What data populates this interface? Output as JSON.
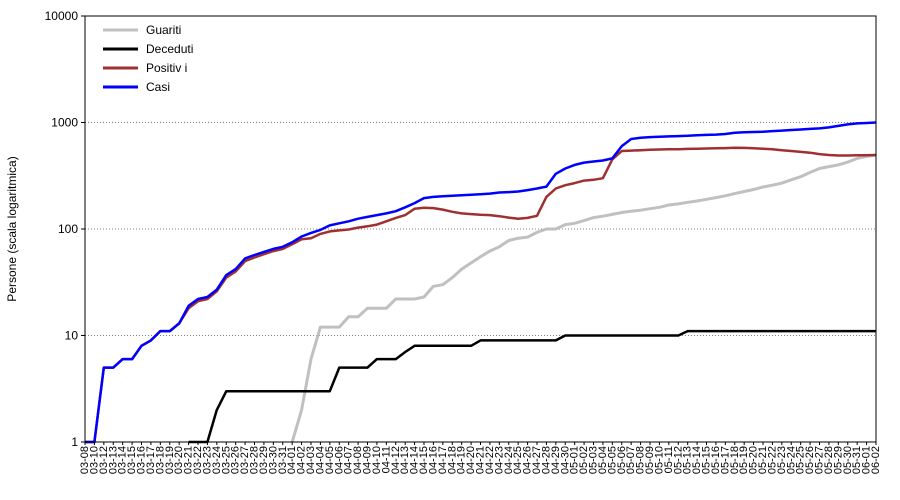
{
  "chart_data": {
    "type": "line",
    "title": "",
    "xlabel": "",
    "ylabel": "Persone (scala logaritmica)",
    "yscale": "log",
    "ylim": [
      1,
      10000
    ],
    "y_ticks": [
      "1",
      "10",
      "100",
      "1000",
      "10000"
    ],
    "grid": "horizontal dotted",
    "legend_position": "top-left",
    "x": [
      "03-08",
      "03-10",
      "03-12",
      "03-13",
      "03-14",
      "03-15",
      "03-16",
      "03-17",
      "03-18",
      "03-19",
      "03-20",
      "03-21",
      "03-22",
      "03-23",
      "03-24",
      "03-25",
      "03-26",
      "03-27",
      "03-28",
      "03-29",
      "03-30",
      "03-31",
      "04-01",
      "04-02",
      "04-03",
      "04-04",
      "04-05",
      "04-06",
      "04-07",
      "04-08",
      "04-09",
      "04-10",
      "04-11",
      "04-12",
      "04-13",
      "04-14",
      "04-15",
      "04-16",
      "04-17",
      "04-18",
      "04-19",
      "04-20",
      "04-21",
      "04-22",
      "04-23",
      "04-24",
      "04-25",
      "04-26",
      "04-27",
      "04-28",
      "04-29",
      "04-30",
      "05-01",
      "05-02",
      "05-03",
      "05-04",
      "05-05",
      "05-06",
      "05-07",
      "05-08",
      "05-09",
      "05-10",
      "05-11",
      "05-12",
      "05-13",
      "05-14",
      "05-15",
      "05-16",
      "05-17",
      "05-18",
      "05-19",
      "05-20",
      "05-21",
      "05-22",
      "05-23",
      "05-24",
      "05-25",
      "05-26",
      "05-27",
      "05-28",
      "05-29",
      "05-30",
      "05-31",
      "06-01",
      "06-02"
    ],
    "x_tick_labels": [
      "03-08",
      "03-10",
      "03-12",
      "03-13",
      "03-14",
      "03-15",
      "03-16",
      "03-17",
      "03-18",
      "03-19",
      "03-20",
      "03-21",
      "03-22",
      "03-23",
      "03-24",
      "03-25",
      "03-26",
      "03-27",
      "03-28",
      "03-29",
      "03-30",
      "03-31",
      "04-01",
      "04-02",
      "04-03",
      "04-04",
      "04-05",
      "04-06",
      "04-07",
      "04-08",
      "04-09",
      "04-10",
      "04-11",
      "04-12",
      "04-13",
      "04-14",
      "04-15",
      "04-16",
      "04-17",
      "04-18",
      "04-19",
      "04-20",
      "04-21",
      "04-22",
      "04-23",
      "04-24",
      "04-25",
      "04-26",
      "04-27",
      "04-28",
      "04-29",
      "04-30",
      "05-01",
      "05-02",
      "05-03",
      "05-04",
      "05-05",
      "05-06",
      "05-07",
      "05-08",
      "05-09",
      "05-10",
      "05-11",
      "05-12",
      "05-13",
      "05-14",
      "05-15",
      "05-16",
      "05-17",
      "05-18",
      "05-19",
      "05-20",
      "05-21",
      "05-22",
      "05-23",
      "05-24",
      "05-25",
      "05-26",
      "05-27",
      "05-28",
      "05-29",
      "05-30",
      "05-31",
      "06-01",
      "06-02"
    ],
    "series": [
      {
        "name": "Guariti",
        "color": "#c0c0c0",
        "values": [
          null,
          null,
          null,
          null,
          null,
          null,
          null,
          null,
          null,
          null,
          null,
          null,
          null,
          null,
          null,
          null,
          null,
          null,
          null,
          null,
          null,
          null,
          1,
          2,
          6,
          12,
          12,
          12,
          15,
          15,
          18,
          18,
          18,
          22,
          22,
          22,
          23,
          29,
          30,
          35,
          42,
          48,
          55,
          62,
          68,
          78,
          82,
          84,
          93,
          100,
          100,
          110,
          113,
          120,
          128,
          132,
          137,
          143,
          147,
          150,
          155,
          160,
          168,
          172,
          178,
          183,
          190,
          197,
          205,
          215,
          225,
          235,
          248,
          258,
          270,
          290,
          310,
          340,
          370,
          385,
          400,
          425,
          460,
          480,
          495
        ]
      },
      {
        "name": "Deceduti",
        "color": "#000000",
        "values": [
          null,
          null,
          null,
          null,
          null,
          null,
          null,
          null,
          null,
          null,
          null,
          1,
          1,
          1,
          2,
          3,
          3,
          3,
          3,
          3,
          3,
          3,
          3,
          3,
          3,
          3,
          3,
          5,
          5,
          5,
          5,
          6,
          6,
          6,
          7,
          8,
          8,
          8,
          8,
          8,
          8,
          8,
          9,
          9,
          9,
          9,
          9,
          9,
          9,
          9,
          9,
          10,
          10,
          10,
          10,
          10,
          10,
          10,
          10,
          10,
          10,
          10,
          10,
          10,
          11,
          11,
          11,
          11,
          11,
          11,
          11,
          11,
          11,
          11,
          11,
          11,
          11,
          11,
          11,
          11,
          11,
          11,
          11,
          11,
          11
        ]
      },
      {
        "name": "Positiv i",
        "color": "#a03030",
        "values": [
          1,
          1,
          5,
          5,
          6,
          6,
          8,
          9,
          11,
          11,
          13,
          18,
          21,
          22,
          26,
          35,
          40,
          50,
          54,
          58,
          62,
          65,
          72,
          80,
          82,
          90,
          95,
          97,
          99,
          103,
          106,
          110,
          118,
          127,
          135,
          155,
          158,
          157,
          152,
          145,
          140,
          138,
          136,
          135,
          132,
          128,
          125,
          127,
          133,
          200,
          240,
          258,
          270,
          285,
          290,
          300,
          450,
          540,
          545,
          550,
          555,
          558,
          560,
          562,
          565,
          568,
          570,
          572,
          575,
          580,
          578,
          572,
          568,
          560,
          550,
          540,
          530,
          520,
          505,
          495,
          490,
          490,
          492,
          493,
          495
        ]
      },
      {
        "name": "Casi",
        "color": "#0000ff",
        "values": [
          1,
          1,
          5,
          5,
          6,
          6,
          8,
          9,
          11,
          11,
          13,
          19,
          22,
          23,
          27,
          37,
          42,
          53,
          57,
          61,
          65,
          68,
          75,
          85,
          92,
          98,
          108,
          113,
          118,
          125,
          130,
          135,
          140,
          147,
          160,
          175,
          195,
          200,
          203,
          205,
          207,
          210,
          212,
          215,
          220,
          222,
          225,
          232,
          240,
          250,
          330,
          370,
          400,
          420,
          430,
          440,
          460,
          600,
          700,
          720,
          730,
          735,
          740,
          745,
          750,
          760,
          765,
          770,
          780,
          800,
          810,
          815,
          820,
          830,
          840,
          850,
          860,
          870,
          880,
          900,
          930,
          960,
          980,
          990,
          1000
        ]
      }
    ]
  }
}
